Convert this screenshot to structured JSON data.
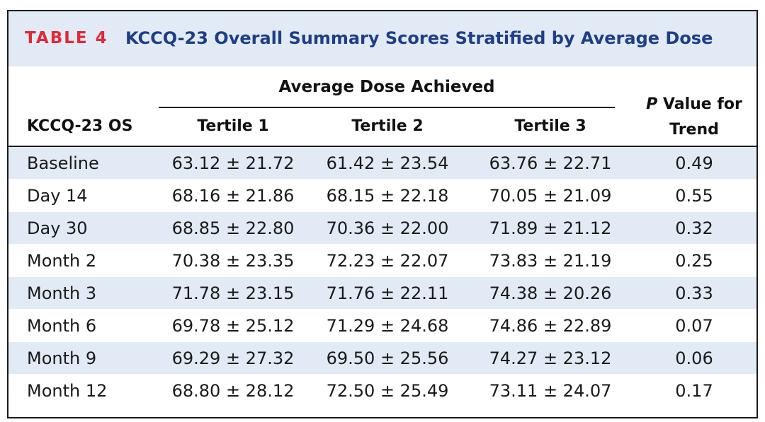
{
  "table": {
    "label": "TABLE 4",
    "title": "KCCQ-23 Overall Summary Scores Stratified by Average Dose",
    "group_header": "Average Dose Achieved",
    "columns": {
      "row_label": "KCCQ-23 OS",
      "tertile1": "Tertile 1",
      "tertile2": "Tertile 2",
      "tertile3": "Tertile 3",
      "pvalue_italic": "P",
      "pvalue_line1_rest": " Value for",
      "pvalue_line2": "Trend"
    },
    "rows": [
      {
        "label": "Baseline",
        "t1": "63.12 ± 21.72",
        "t2": "61.42 ± 23.54",
        "t3": "63.76 ± 22.71",
        "p": "0.49"
      },
      {
        "label": "Day 14",
        "t1": "68.16 ± 21.86",
        "t2": "68.15 ± 22.18",
        "t3": "70.05 ± 21.09",
        "p": "0.55"
      },
      {
        "label": "Day 30",
        "t1": "68.85 ± 22.80",
        "t2": "70.36 ± 22.00",
        "t3": "71.89 ± 21.12",
        "p": "0.32"
      },
      {
        "label": "Month 2",
        "t1": "70.38 ± 23.35",
        "t2": "72.23 ± 22.07",
        "t3": "73.83 ± 21.19",
        "p": "0.25"
      },
      {
        "label": "Month 3",
        "t1": "71.78 ± 23.15",
        "t2": "71.76 ± 22.11",
        "t3": "74.38 ± 20.26",
        "p": "0.33"
      },
      {
        "label": "Month 6",
        "t1": "69.78 ± 25.12",
        "t2": "71.29 ± 24.68",
        "t3": "74.86 ± 22.89",
        "p": "0.07"
      },
      {
        "label": "Month 9",
        "t1": "69.29 ± 27.32",
        "t2": "69.50 ± 25.56",
        "t3": "74.27 ± 23.12",
        "p": "0.06"
      },
      {
        "label": "Month 12",
        "t1": "68.80 ± 28.12",
        "t2": "72.50 ± 25.49",
        "t3": "73.11 ± 24.07",
        "p": "0.17"
      }
    ]
  },
  "colors": {
    "label_red": "#e02a36",
    "title_blue": "#1f3e86",
    "band_blue": "#e1eaf5"
  }
}
